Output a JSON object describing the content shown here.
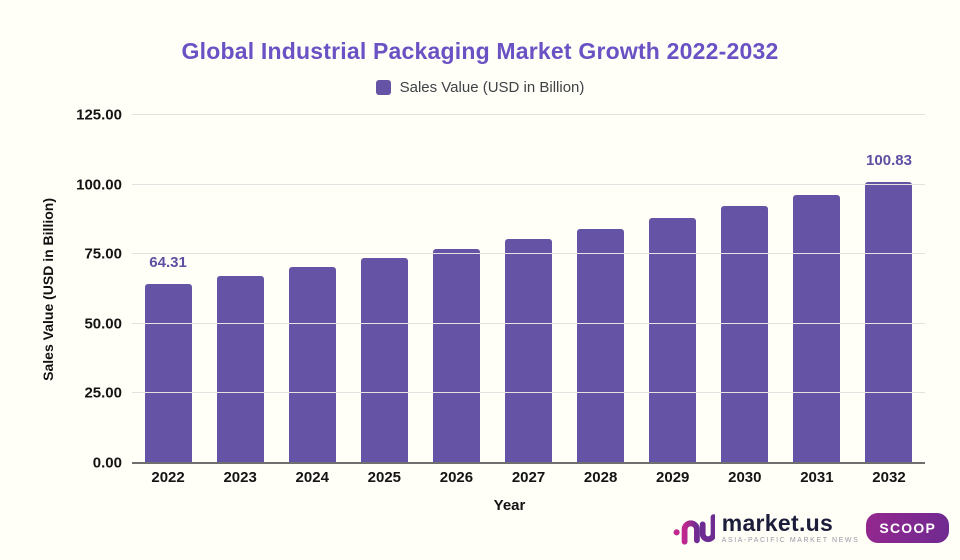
{
  "page": {
    "background_color": "#fffef7"
  },
  "header": {
    "title": "Global Industrial Packaging Market Growth 2022-2032",
    "title_color": "#6a52c4"
  },
  "legend": {
    "label": "Sales Value (USD in Billion)",
    "swatch_color": "#6554a5"
  },
  "chart_data": {
    "type": "bar",
    "title": "Global Industrial Packaging Market Growth 2022-2032",
    "categories": [
      "2022",
      "2023",
      "2024",
      "2025",
      "2026",
      "2027",
      "2028",
      "2029",
      "2030",
      "2031",
      "2032"
    ],
    "series": [
      {
        "name": "Sales Value (USD in Billion)",
        "values": [
          64.31,
          67.27,
          70.36,
          73.6,
          76.99,
          80.53,
          84.23,
          88.11,
          92.16,
          96.4,
          100.83
        ]
      }
    ],
    "data_labels": [
      "64.31",
      "",
      "",
      "",
      "",
      "",
      "",
      "",
      "",
      "",
      "100.83"
    ],
    "xlabel": "Year",
    "ylabel": "Sales Value (USD in Billion)",
    "ylim": [
      0,
      125
    ],
    "yticks": [
      "0.00",
      "25.00",
      "50.00",
      "75.00",
      "100.00",
      "125.00"
    ],
    "grid": true,
    "legend_position": "top",
    "bar_color": "#6554a5",
    "annotation_color": "#5e4fa2"
  },
  "logo": {
    "brand": "market.us",
    "tagline": "ASIA-PACIFIC MARKET NEWS",
    "badge": "SCOOP"
  }
}
